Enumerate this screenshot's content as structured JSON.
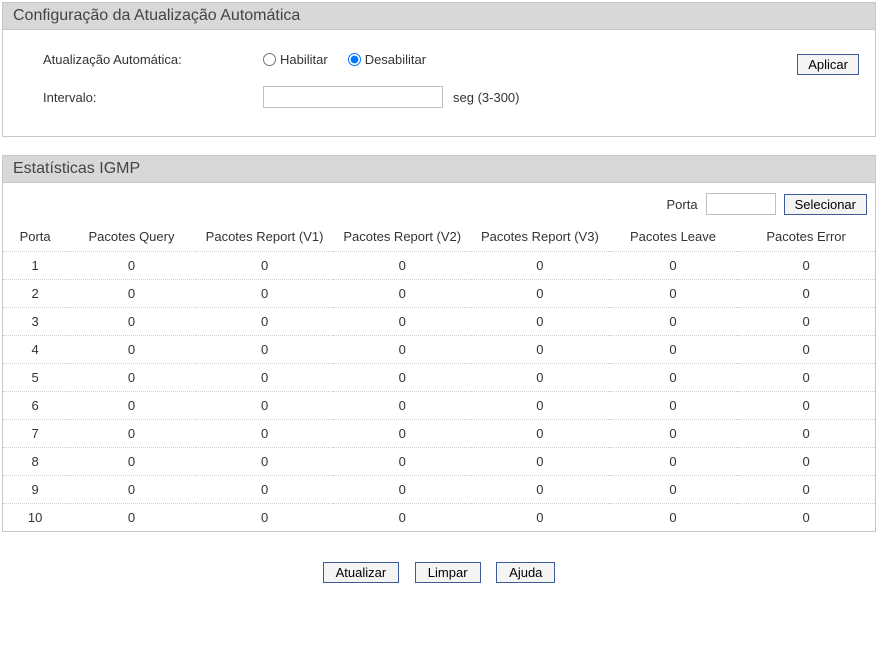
{
  "config": {
    "panel_title": "Configuração da Atualização Automática",
    "auto_update_label": "Atualização Automática:",
    "enable_label": "Habilitar",
    "disable_label": "Desabilitar",
    "auto_update_value": "disable",
    "interval_label": "Intervalo:",
    "interval_value": "",
    "interval_unit": "seg (3-300)",
    "apply_label": "Aplicar"
  },
  "stats": {
    "panel_title": "Estatísticas IGMP",
    "filter_label": "Porta",
    "filter_value": "",
    "select_label": "Selecionar",
    "columns": [
      "Porta",
      "Pacotes Query",
      "Pacotes Report (V1)",
      "Pacotes Report (V2)",
      "Pacotes Report (V3)",
      "Pacotes Leave",
      "Pacotes Error"
    ],
    "rows": [
      {
        "porta": "1",
        "query": "0",
        "v1": "0",
        "v2": "0",
        "v3": "0",
        "leave": "0",
        "error": "0"
      },
      {
        "porta": "2",
        "query": "0",
        "v1": "0",
        "v2": "0",
        "v3": "0",
        "leave": "0",
        "error": "0"
      },
      {
        "porta": "3",
        "query": "0",
        "v1": "0",
        "v2": "0",
        "v3": "0",
        "leave": "0",
        "error": "0"
      },
      {
        "porta": "4",
        "query": "0",
        "v1": "0",
        "v2": "0",
        "v3": "0",
        "leave": "0",
        "error": "0"
      },
      {
        "porta": "5",
        "query": "0",
        "v1": "0",
        "v2": "0",
        "v3": "0",
        "leave": "0",
        "error": "0"
      },
      {
        "porta": "6",
        "query": "0",
        "v1": "0",
        "v2": "0",
        "v3": "0",
        "leave": "0",
        "error": "0"
      },
      {
        "porta": "7",
        "query": "0",
        "v1": "0",
        "v2": "0",
        "v3": "0",
        "leave": "0",
        "error": "0"
      },
      {
        "porta": "8",
        "query": "0",
        "v1": "0",
        "v2": "0",
        "v3": "0",
        "leave": "0",
        "error": "0"
      },
      {
        "porta": "9",
        "query": "0",
        "v1": "0",
        "v2": "0",
        "v3": "0",
        "leave": "0",
        "error": "0"
      },
      {
        "porta": "10",
        "query": "0",
        "v1": "0",
        "v2": "0",
        "v3": "0",
        "leave": "0",
        "error": "0"
      }
    ]
  },
  "actions": {
    "refresh": "Atualizar",
    "clear": "Limpar",
    "help": "Ajuda"
  },
  "colors": {
    "panel_header_bg": "#d8d8d8",
    "border": "#c8c8c8",
    "row_border": "#cfcfcf",
    "button_border": "#3a5a9a"
  }
}
